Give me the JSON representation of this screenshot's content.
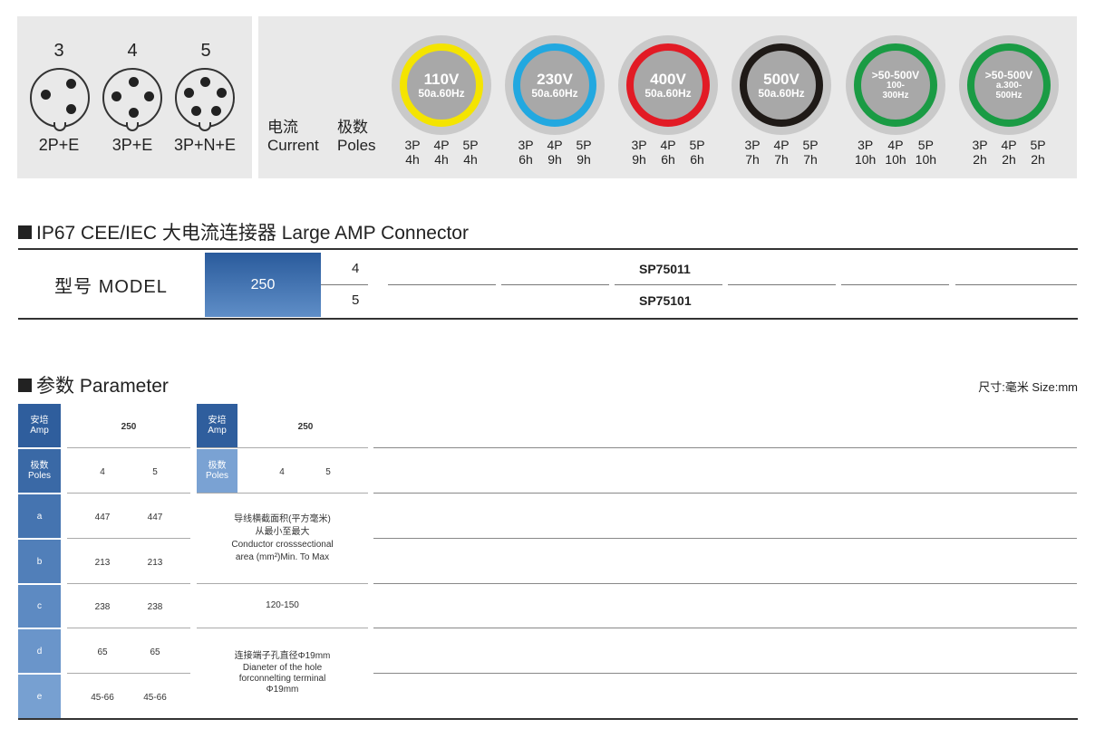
{
  "pins": [
    {
      "count": "3",
      "label": "2P+E"
    },
    {
      "count": "4",
      "label": "3P+E"
    },
    {
      "count": "5",
      "label": "3P+N+E"
    }
  ],
  "header": {
    "current_cn": "电流",
    "current_en": "Current",
    "poles_cn": "极数",
    "poles_en": "Poles"
  },
  "voltages": [
    {
      "v": "110V",
      "hz": "50a.60Hz",
      "color": "#f4e400",
      "poles": [
        "3P",
        "4P",
        "5P"
      ],
      "hours": [
        "4h",
        "4h",
        "4h"
      ]
    },
    {
      "v": "230V",
      "hz": "50a.60Hz",
      "color": "#22a8e0",
      "poles": [
        "3P",
        "4P",
        "5P"
      ],
      "hours": [
        "6h",
        "9h",
        "9h"
      ]
    },
    {
      "v": "400V",
      "hz": "50a.60Hz",
      "color": "#e21b25",
      "poles": [
        "3P",
        "4P",
        "5P"
      ],
      "hours": [
        "9h",
        "6h",
        "6h"
      ]
    },
    {
      "v": "500V",
      "hz": "50a.60Hz",
      "color": "#1f1a17",
      "poles": [
        "3P",
        "4P",
        "5P"
      ],
      "hours": [
        "7h",
        "7h",
        "7h"
      ]
    },
    {
      "v": ">50-500V",
      "hz": "100-\n300Hz",
      "color": "#1a9b44",
      "poles": [
        "3P",
        "4P",
        "5P"
      ],
      "hours": [
        "10h",
        "10h",
        "10h"
      ]
    },
    {
      "v": ">50-500V",
      "hz": "a.300-\n500Hz",
      "color": "#1a9b44",
      "poles": [
        "3P",
        "4P",
        "5P"
      ],
      "hours": [
        "2h",
        "2h",
        "2h"
      ]
    }
  ],
  "section1": {
    "title": "IP67 CEE/IEC 大电流连接器  Large AMP Connector"
  },
  "model": {
    "label": "型号 MODEL",
    "amp": "250",
    "rows": [
      {
        "poles": "4",
        "code": "SP75011"
      },
      {
        "poles": "5",
        "code": "SP75101"
      }
    ]
  },
  "section2": {
    "title": "参数 Parameter",
    "size": "尺寸:毫米  Size:mm"
  },
  "param": {
    "amp_cn": "安培",
    "amp_en": "Amp",
    "amp_val": "250",
    "poles_cn": "极数",
    "poles_en": "Poles",
    "poles_vals": [
      "4",
      "5"
    ],
    "rows": [
      {
        "k": "a",
        "v": [
          "447",
          "447"
        ]
      },
      {
        "k": "b",
        "v": [
          "213",
          "213"
        ]
      },
      {
        "k": "c",
        "v": [
          "238",
          "238"
        ]
      },
      {
        "k": "d",
        "v": [
          "65",
          "65"
        ]
      },
      {
        "k": "e",
        "v": [
          "45-66",
          "45-66"
        ]
      }
    ],
    "right_amp_cn": "安培",
    "right_amp_en": "Amp",
    "right_amp_val": "250",
    "right_poles_cn": "极数",
    "right_poles_en": "Poles",
    "right_poles_vals": [
      "4",
      "5"
    ],
    "cross_cn": "导线横截面积(平方毫米)\n从最小至最大",
    "cross_en": "Conductor crosssectional\narea (mm²)Min. To Max",
    "cross_val": "120-150",
    "hole_cn": "连接端子孔直径Φ19mm",
    "hole_en": "Dianeter of the hole\nforconnelting terminal\nΦ19mm"
  }
}
